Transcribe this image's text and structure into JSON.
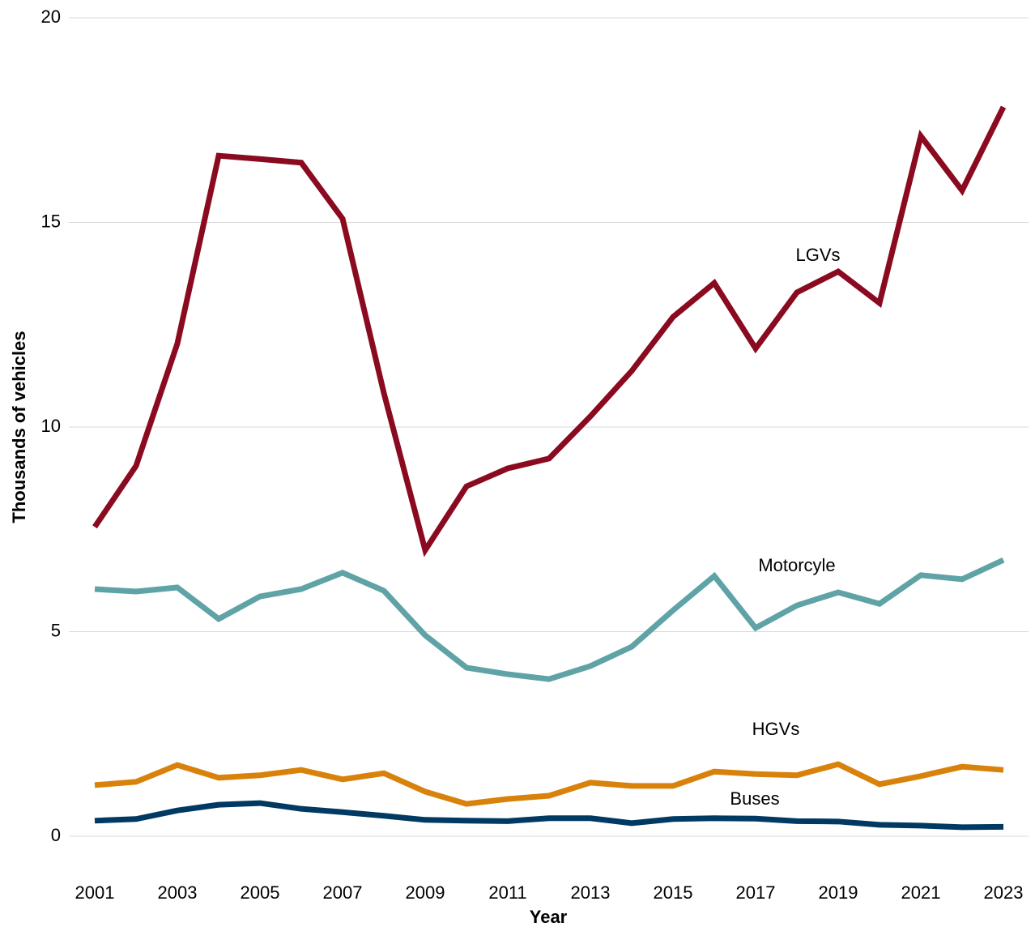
{
  "chart_data": {
    "type": "line",
    "x_label": "Year",
    "y_label": "Thousands of vehicles",
    "x": [
      2001,
      2002,
      2003,
      2004,
      2005,
      2006,
      2007,
      2008,
      2009,
      2010,
      2011,
      2012,
      2013,
      2014,
      2015,
      2016,
      2017,
      2018,
      2019,
      2020,
      2021,
      2022,
      2023
    ],
    "series": [
      {
        "name": "LGVs",
        "color": "#8a0a1f",
        "values": [
          7.56,
          9.05,
          12.04,
          16.63,
          16.55,
          16.46,
          15.09,
          10.83,
          6.99,
          8.55,
          8.99,
          9.23,
          10.26,
          11.37,
          12.69,
          13.52,
          11.92,
          13.29,
          13.8,
          13.03,
          17.11,
          15.78,
          17.82
        ]
      },
      {
        "name": "Motorcyle",
        "color": "#5fa3a6",
        "values": [
          6.04,
          5.98,
          6.08,
          5.31,
          5.86,
          6.04,
          6.44,
          6.0,
          4.91,
          4.12,
          3.96,
          3.84,
          4.16,
          4.63,
          5.52,
          6.36,
          5.09,
          5.64,
          5.96,
          5.68,
          6.38,
          6.28,
          6.75
        ]
      },
      {
        "name": "HGVs",
        "color": "#d9820b",
        "values": [
          1.25,
          1.33,
          1.74,
          1.43,
          1.49,
          1.62,
          1.39,
          1.54,
          1.09,
          0.79,
          0.91,
          0.99,
          1.31,
          1.23,
          1.23,
          1.58,
          1.52,
          1.49,
          1.76,
          1.27,
          1.47,
          1.7,
          1.62
        ]
      },
      {
        "name": "Buses",
        "color": "#003a63",
        "values": [
          0.38,
          0.42,
          0.63,
          0.77,
          0.81,
          0.67,
          0.59,
          0.5,
          0.4,
          0.38,
          0.37,
          0.44,
          0.44,
          0.32,
          0.42,
          0.44,
          0.43,
          0.37,
          0.36,
          0.28,
          0.26,
          0.22,
          0.23
        ]
      }
    ],
    "xlim": [
      2001,
      2023
    ],
    "xticks": [
      2001,
      2003,
      2005,
      2007,
      2009,
      2011,
      2013,
      2015,
      2017,
      2019,
      2021,
      2023
    ],
    "ylim": [
      0,
      20
    ],
    "yticks": [
      0,
      5,
      10,
      15,
      20
    ],
    "grid": true
  }
}
